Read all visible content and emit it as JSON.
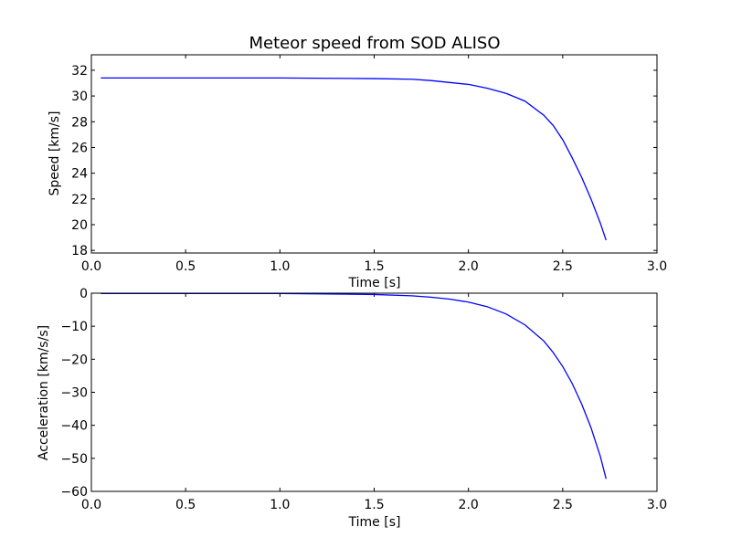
{
  "chart_data": [
    {
      "type": "line",
      "title": "Meteor speed from  SOD ALISO",
      "xlabel": "Time [s]",
      "ylabel": "Speed [km/s]",
      "xlim": [
        0.0,
        3.0
      ],
      "ylim": [
        17.8,
        33.2
      ],
      "xticks": [
        "0.0",
        "0.5",
        "1.0",
        "1.5",
        "2.0",
        "2.5",
        "3.0"
      ],
      "xtick_values": [
        0.0,
        0.5,
        1.0,
        1.5,
        2.0,
        2.5,
        3.0
      ],
      "yticks": [
        "18",
        "20",
        "22",
        "24",
        "26",
        "28",
        "30",
        "32"
      ],
      "ytick_values": [
        18,
        20,
        22,
        24,
        26,
        28,
        30,
        32
      ],
      "grid": false,
      "color": "#0000ff",
      "series": [
        {
          "x": [
            0.05,
            0.5,
            1.0,
            1.5,
            1.7,
            1.8,
            1.9,
            2.0,
            2.1,
            2.2,
            2.3,
            2.4,
            2.45,
            2.5,
            2.55,
            2.6,
            2.65,
            2.7,
            2.73
          ],
          "values": [
            31.4,
            31.4,
            31.4,
            31.35,
            31.3,
            31.2,
            31.05,
            30.9,
            30.6,
            30.2,
            29.6,
            28.5,
            27.7,
            26.6,
            25.2,
            23.7,
            22.0,
            20.1,
            18.8
          ]
        }
      ]
    },
    {
      "type": "line",
      "title": "",
      "xlabel": "Time [s]",
      "ylabel": "Acceleration [km/s/s]",
      "xlim": [
        0.0,
        3.0
      ],
      "ylim": [
        -60,
        0
      ],
      "xticks": [
        "0.0",
        "0.5",
        "1.0",
        "1.5",
        "2.0",
        "2.5",
        "3.0"
      ],
      "xtick_values": [
        0.0,
        0.5,
        1.0,
        1.5,
        2.0,
        2.5,
        3.0
      ],
      "yticks": [
        "0",
        "−10",
        "−20",
        "−30",
        "−40",
        "−50",
        "−60"
      ],
      "ytick_values": [
        0,
        -10,
        -20,
        -30,
        -40,
        -50,
        -60
      ],
      "grid": false,
      "color": "#0000ff",
      "series": [
        {
          "x": [
            0.05,
            0.5,
            1.0,
            1.5,
            1.7,
            1.8,
            1.9,
            2.0,
            2.1,
            2.2,
            2.3,
            2.4,
            2.45,
            2.5,
            2.55,
            2.6,
            2.65,
            2.7,
            2.73
          ],
          "values": [
            -0.1,
            -0.1,
            -0.1,
            -0.4,
            -0.8,
            -1.2,
            -1.8,
            -2.7,
            -4.1,
            -6.3,
            -9.6,
            -14.5,
            -18.0,
            -22.2,
            -27.3,
            -33.5,
            -40.7,
            -49.5,
            -56.2
          ]
        }
      ]
    }
  ]
}
